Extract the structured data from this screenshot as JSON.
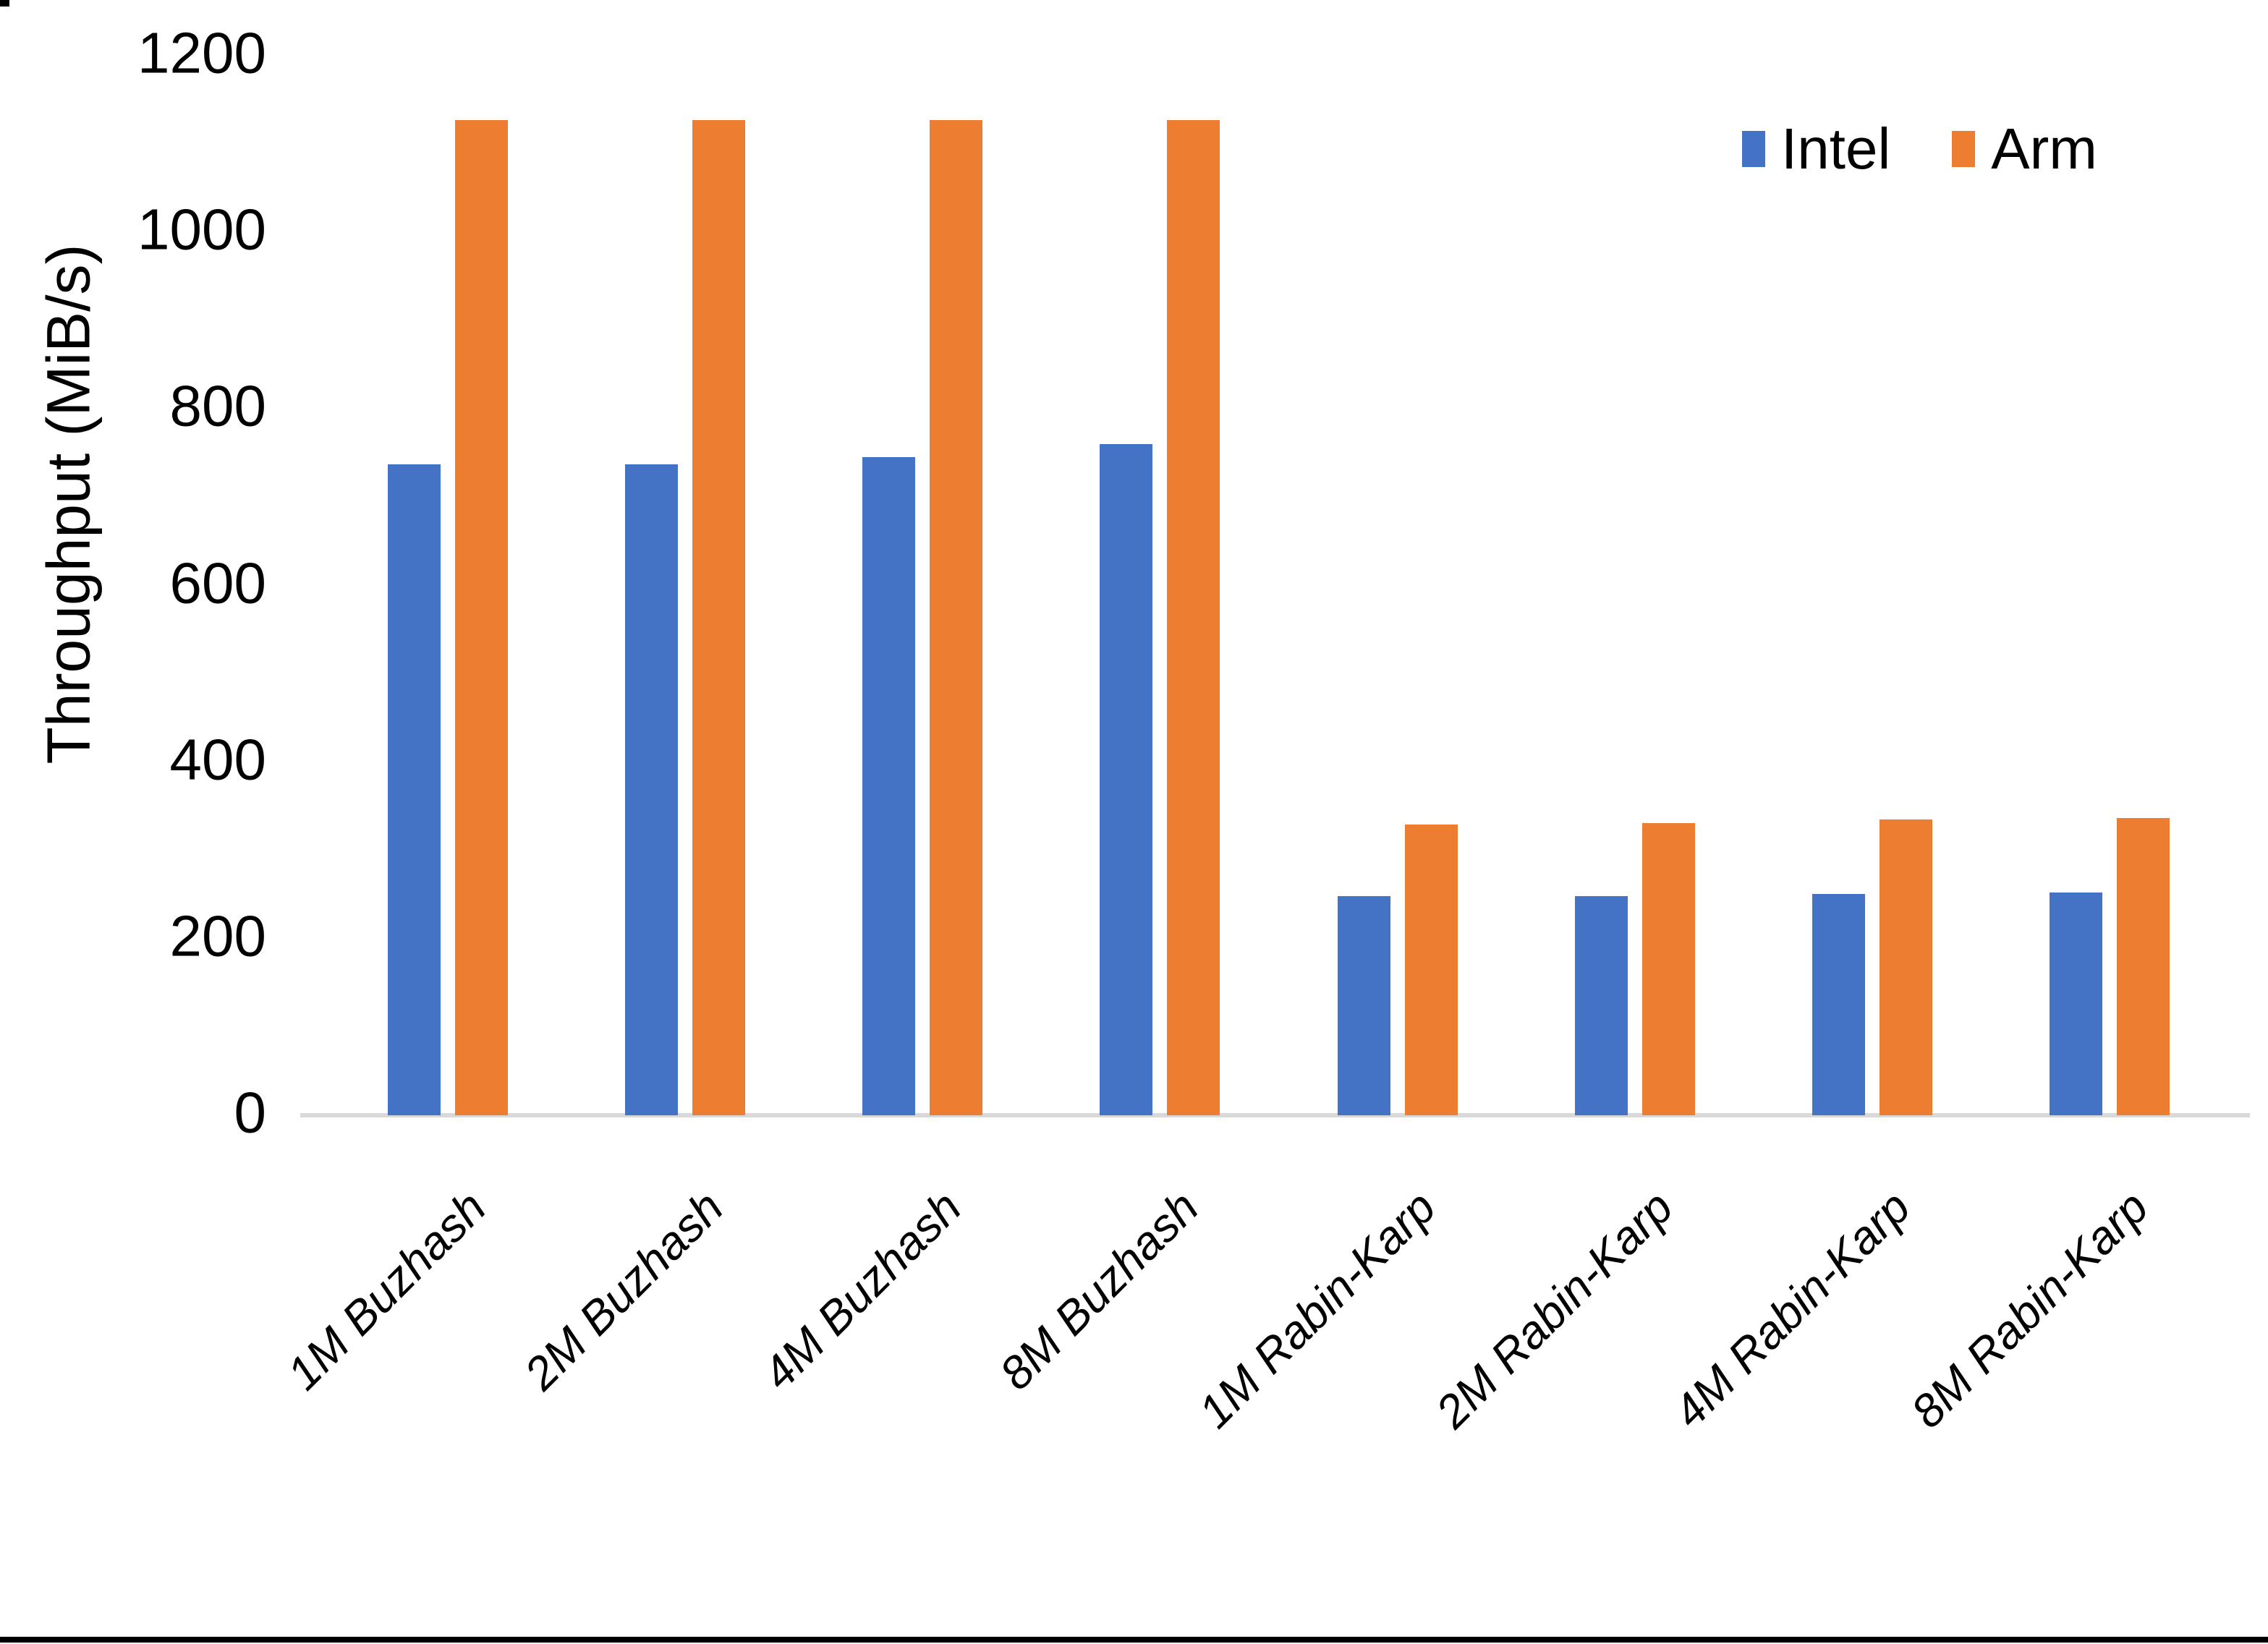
{
  "chart_data": {
    "type": "bar",
    "title": "",
    "xlabel": "",
    "ylabel": "Throughput (MiB/s)",
    "ylim": [
      0,
      1200
    ],
    "ytick_step": 200,
    "yticks": [
      0,
      200,
      400,
      600,
      800,
      1000,
      1200
    ],
    "grid": false,
    "legend_position": "top-right",
    "categories": [
      "1M Buzhash",
      "2M Buzhash",
      "4M Buzhash",
      "8M Buzhash",
      "1M Rabin-Karp",
      "2M Rabin-Karp",
      "4M Rabin-Karp",
      "8M Rabin-Karp"
    ],
    "series": [
      {
        "name": "Intel",
        "color": "#4472c4",
        "values": [
          737,
          737,
          745,
          760,
          248,
          248,
          251,
          252
        ]
      },
      {
        "name": "Arm",
        "color": "#ed7d31",
        "values": [
          1127,
          1127,
          1127,
          1127,
          329,
          331,
          335,
          337
        ]
      }
    ],
    "colors": {
      "intel": "#4472c4",
      "arm": "#ed7d31",
      "axis_line": "#d9d9d9",
      "text": "#000000"
    }
  }
}
